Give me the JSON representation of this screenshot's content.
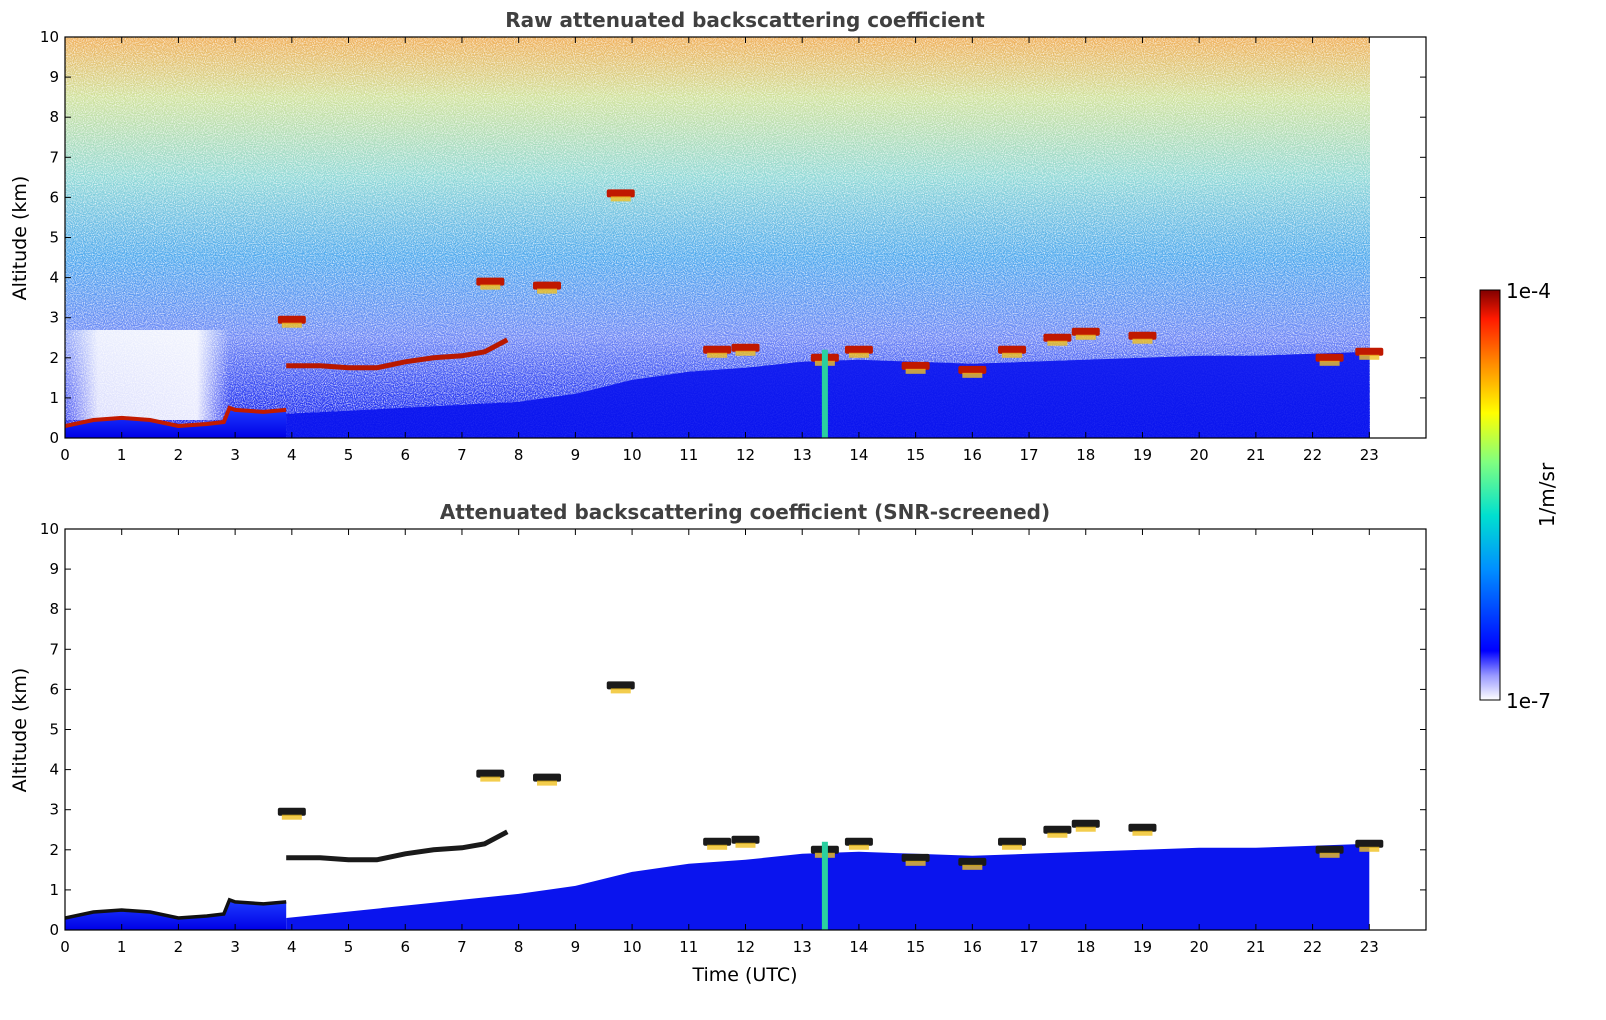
{
  "chart_data": [
    {
      "type": "heatmap",
      "title": "Raw attenuated backscattering coefficient",
      "xlabel": "",
      "ylabel": "Altitude (km)",
      "xlim": [
        0,
        24
      ],
      "ylim": [
        0,
        10
      ],
      "xticks": [
        0,
        1,
        2,
        3,
        4,
        5,
        6,
        7,
        8,
        9,
        10,
        11,
        12,
        13,
        14,
        15,
        16,
        17,
        18,
        19,
        20,
        21,
        22,
        23
      ],
      "yticks": [
        0,
        1,
        2,
        3,
        4,
        5,
        6,
        7,
        8,
        9,
        10
      ],
      "data_end_time": 23,
      "features": {
        "boundary_layer_top": [
          [
            0,
            0.3
          ],
          [
            0.5,
            0.45
          ],
          [
            1,
            0.5
          ],
          [
            1.5,
            0.45
          ],
          [
            2,
            0.3
          ],
          [
            2.5,
            0.35
          ],
          [
            2.8,
            0.4
          ],
          [
            2.9,
            0.75
          ],
          [
            3,
            0.7
          ],
          [
            3.5,
            0.65
          ],
          [
            3.9,
            0.7
          ]
        ],
        "residual_layer": [
          [
            3.9,
            1.8
          ],
          [
            4.5,
            1.8
          ],
          [
            5,
            1.75
          ],
          [
            5.5,
            1.75
          ],
          [
            6,
            1.9
          ],
          [
            6.5,
            2.0
          ],
          [
            7,
            2.05
          ],
          [
            7.4,
            2.15
          ],
          [
            7.6,
            2.3
          ],
          [
            7.8,
            2.45
          ]
        ],
        "cloud_patches": [
          [
            4,
            2.95
          ],
          [
            7.5,
            3.9
          ],
          [
            8.5,
            3.8
          ],
          [
            9.8,
            6.1
          ],
          [
            11.5,
            2.2
          ],
          [
            12,
            2.25
          ],
          [
            13.4,
            2.0
          ],
          [
            14,
            2.2
          ],
          [
            15,
            1.8
          ],
          [
            16,
            1.7
          ],
          [
            16.7,
            2.2
          ],
          [
            17.5,
            2.5
          ],
          [
            18,
            2.65
          ],
          [
            19,
            2.55
          ],
          [
            22.3,
            2.0
          ],
          [
            23,
            2.15
          ]
        ],
        "aerosol_layer_top": [
          [
            8,
            0.9
          ],
          [
            9,
            1.1
          ],
          [
            10,
            1.45
          ],
          [
            11,
            1.65
          ],
          [
            12,
            1.75
          ],
          [
            13,
            1.9
          ],
          [
            14,
            1.95
          ],
          [
            15,
            1.9
          ],
          [
            16,
            1.85
          ],
          [
            17,
            1.9
          ],
          [
            18,
            1.95
          ],
          [
            19,
            2.0
          ],
          [
            20,
            2.05
          ],
          [
            21,
            2.05
          ],
          [
            22,
            2.1
          ],
          [
            23,
            2.15
          ]
        ],
        "bright_column_time": 13.4
      }
    },
    {
      "type": "heatmap",
      "title": "Attenuated backscattering coefficient (SNR-screened)",
      "xlabel": "Time (UTC)",
      "ylabel": "Altitude (km)",
      "xlim": [
        0,
        24
      ],
      "ylim": [
        0,
        10
      ],
      "xticks": [
        0,
        1,
        2,
        3,
        4,
        5,
        6,
        7,
        8,
        9,
        10,
        11,
        12,
        13,
        14,
        15,
        16,
        17,
        18,
        19,
        20,
        21,
        22,
        23
      ],
      "yticks": [
        0,
        1,
        2,
        3,
        4,
        5,
        6,
        7,
        8,
        9,
        10
      ],
      "data_end_time": 23
    }
  ],
  "colorbar": {
    "label": "1/m/sr",
    "max_label": "1e-4",
    "min_label": "1e-7",
    "scale": "log",
    "colors": [
      "#ffffff",
      "#0000ff",
      "#00a0ff",
      "#00e0c0",
      "#80ff80",
      "#ffff00",
      "#ff9000",
      "#ff2000",
      "#800000"
    ]
  }
}
